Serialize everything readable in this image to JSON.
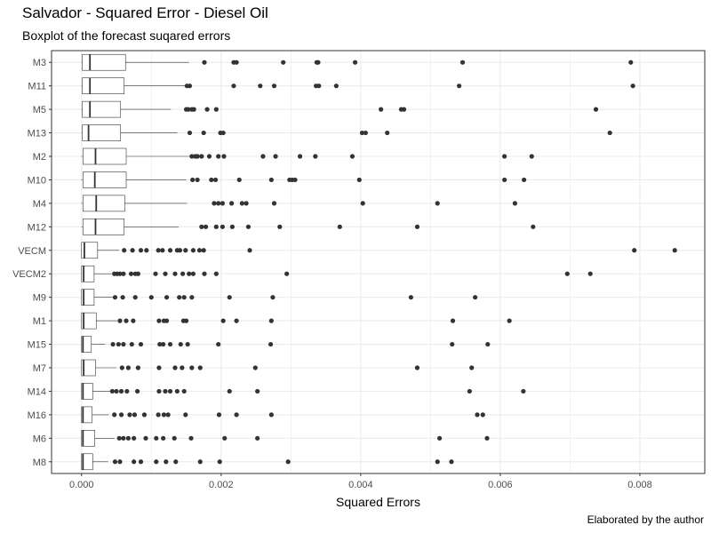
{
  "header": {
    "title": "Salvador - Squared Error - Diesel Oil",
    "subtitle": "Boxplot of the forecast suqared errors"
  },
  "footer": {
    "caption": "Elaborated by the author"
  },
  "colors": {
    "panel_border": "#333333",
    "grid": "#ebebeb",
    "box_fill": "#ffffff",
    "box_line": "#333333",
    "outlier": "#333333"
  },
  "chart_data": {
    "type": "boxplot",
    "orientation": "horizontal",
    "title": "Salvador - Squared Error - Diesel Oil",
    "subtitle": "Boxplot of the forecast suqared errors",
    "xlabel": "Squared Errors",
    "ylabel": "",
    "xlim": [
      -0.00043,
      0.00893
    ],
    "x_ticks": [
      0.0,
      0.002,
      0.004,
      0.006,
      0.008
    ],
    "x_tick_labels": [
      "0.000",
      "0.002",
      "0.004",
      "0.006",
      "0.008"
    ],
    "grid": true,
    "legend": "none",
    "series": [
      {
        "name": "M3",
        "min": 0.0,
        "q1": 1e-05,
        "median": 0.00012,
        "q3": 0.00063,
        "max": 0.00154,
        "outliers": [
          0.00176,
          0.00218,
          0.00222,
          0.00289,
          0.00337,
          0.00339,
          0.00392,
          0.00546,
          0.00787
        ]
      },
      {
        "name": "M11",
        "min": 0.0,
        "q1": 1e-05,
        "median": 0.00012,
        "q3": 0.00061,
        "max": 0.00149,
        "outliers": [
          0.00151,
          0.00155,
          0.00218,
          0.00256,
          0.00276,
          0.00336,
          0.0034,
          0.00365,
          0.00541,
          0.0079
        ]
      },
      {
        "name": "M5",
        "min": 0.0,
        "q1": 1e-05,
        "median": 0.00012,
        "q3": 0.00056,
        "max": 0.00128,
        "outliers": [
          0.0015,
          0.00153,
          0.00158,
          0.00161,
          0.0018,
          0.00193,
          0.00429,
          0.00458,
          0.00462,
          0.00737
        ]
      },
      {
        "name": "M13",
        "min": 0.0,
        "q1": 1e-05,
        "median": 0.0001,
        "q3": 0.00056,
        "max": 0.00137,
        "outliers": [
          0.00155,
          0.00175,
          0.00199,
          0.00203,
          0.00402,
          0.00407,
          0.00438,
          0.00757
        ]
      },
      {
        "name": "M2",
        "min": 0.0,
        "q1": 2e-05,
        "median": 0.0002,
        "q3": 0.00064,
        "max": 0.00155,
        "outliers": [
          0.00158,
          0.00163,
          0.00166,
          0.00172,
          0.00183,
          0.00196,
          0.00204,
          0.0026,
          0.00278,
          0.00313,
          0.00335,
          0.00388,
          0.00606,
          0.00645
        ]
      },
      {
        "name": "M10",
        "min": 0.0,
        "q1": 2e-05,
        "median": 0.00019,
        "q3": 0.00064,
        "max": 0.0015,
        "outliers": [
          0.00159,
          0.00166,
          0.00186,
          0.00192,
          0.00226,
          0.00272,
          0.00298,
          0.00302,
          0.00306,
          0.00398,
          0.00606,
          0.00634
        ]
      },
      {
        "name": "M4",
        "min": 0.0,
        "q1": 2e-05,
        "median": 0.00021,
        "q3": 0.00062,
        "max": 0.00151,
        "outliers": [
          0.0019,
          0.00196,
          0.00202,
          0.00215,
          0.0023,
          0.00236,
          0.00276,
          0.00403,
          0.0051,
          0.00621
        ]
      },
      {
        "name": "M12",
        "min": 0.0,
        "q1": 2e-05,
        "median": 0.0002,
        "q3": 0.00061,
        "max": 0.00139,
        "outliers": [
          0.00172,
          0.00178,
          0.00193,
          0.00202,
          0.00216,
          0.00239,
          0.00284,
          0.0037,
          0.00481,
          0.00647
        ]
      },
      {
        "name": "VECM",
        "min": 0.0,
        "q1": 0.0,
        "median": 4e-05,
        "q3": 0.00023,
        "max": 0.00054,
        "outliers": [
          0.00061,
          0.00073,
          0.00085,
          0.00093,
          0.0011,
          0.00116,
          0.00127,
          0.00137,
          0.00141,
          0.00149,
          0.0016,
          0.00169,
          0.00175,
          0.00241,
          0.00792,
          0.0085
        ]
      },
      {
        "name": "VECM2",
        "min": 0.0,
        "q1": 0.0,
        "median": 3e-05,
        "q3": 0.00018,
        "max": 0.00043,
        "outliers": [
          0.00047,
          0.00051,
          0.00055,
          0.0006,
          0.00071,
          0.00077,
          0.00081,
          0.00106,
          0.0012,
          0.00134,
          0.00145,
          0.00154,
          0.0016,
          0.00176,
          0.00193,
          0.00294,
          0.00696,
          0.00729
        ]
      },
      {
        "name": "M9",
        "min": 0.0,
        "q1": 0.0,
        "median": 3e-05,
        "q3": 0.00018,
        "max": 0.00045,
        "outliers": [
          0.00048,
          0.00059,
          0.00077,
          0.001,
          0.00122,
          0.0014,
          0.00147,
          0.00158,
          0.00212,
          0.00274,
          0.00472,
          0.00564
        ]
      },
      {
        "name": "M1",
        "min": 0.0,
        "q1": 0.0,
        "median": 3e-05,
        "q3": 0.00021,
        "max": 0.00051,
        "outliers": [
          0.00055,
          0.00064,
          0.00074,
          0.00111,
          0.00118,
          0.00122,
          0.00146,
          0.0015,
          0.00203,
          0.00222,
          0.00272,
          0.00532,
          0.00613
        ]
      },
      {
        "name": "M15",
        "min": 0.0,
        "q1": 0.0,
        "median": 2e-05,
        "q3": 0.00014,
        "max": 0.00034,
        "outliers": [
          0.00045,
          0.00053,
          0.0006,
          0.00072,
          0.00085,
          0.00112,
          0.00117,
          0.00127,
          0.00142,
          0.00152,
          0.00196,
          0.00271,
          0.00531,
          0.00582
        ]
      },
      {
        "name": "M7",
        "min": 0.0,
        "q1": 0.0,
        "median": 3e-05,
        "q3": 0.0002,
        "max": 0.0005,
        "outliers": [
          0.00058,
          0.00067,
          0.00081,
          0.00111,
          0.00134,
          0.00144,
          0.00158,
          0.0017,
          0.00249,
          0.00481,
          0.00559
        ]
      },
      {
        "name": "M14",
        "min": 0.0,
        "q1": 0.0,
        "median": 2e-05,
        "q3": 0.00016,
        "max": 0.00041,
        "outliers": [
          0.00044,
          0.0005,
          0.00057,
          0.00065,
          0.0008,
          0.00111,
          0.0012,
          0.00127,
          0.00137,
          0.00147,
          0.00212,
          0.00252,
          0.00556,
          0.00633
        ]
      },
      {
        "name": "M16",
        "min": 0.0,
        "q1": 0.0,
        "median": 2e-05,
        "q3": 0.00015,
        "max": 0.00039,
        "outliers": [
          0.00047,
          0.00057,
          0.00069,
          0.00076,
          0.0009,
          0.0011,
          0.00118,
          0.00124,
          0.00149,
          0.00197,
          0.00222,
          0.00272,
          0.00567,
          0.00575
        ]
      },
      {
        "name": "M6",
        "min": 0.0,
        "q1": 0.0,
        "median": 2e-05,
        "q3": 0.00019,
        "max": 0.00047,
        "outliers": [
          0.00054,
          0.0006,
          0.00067,
          0.00075,
          0.00092,
          0.00107,
          0.00117,
          0.00133,
          0.00157,
          0.00205,
          0.00252,
          0.00513,
          0.00581
        ]
      },
      {
        "name": "M8",
        "min": 0.0,
        "q1": 0.0,
        "median": 2e-05,
        "q3": 0.00016,
        "max": 0.00038,
        "outliers": [
          0.00048,
          0.00055,
          0.00075,
          0.00085,
          0.00107,
          0.00121,
          0.00135,
          0.0017,
          0.00198,
          0.00296,
          0.0051,
          0.0053
        ]
      }
    ]
  }
}
